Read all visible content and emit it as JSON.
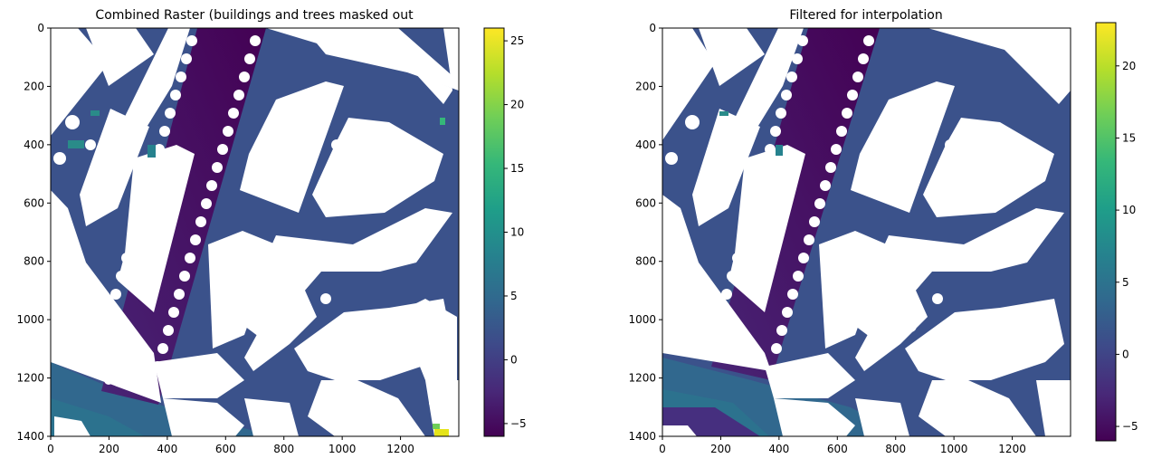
{
  "figure": {
    "background": "#ffffff",
    "colormap": "viridis",
    "colormap_stops": [
      "#440154",
      "#482878",
      "#3e4989",
      "#31688e",
      "#26828e",
      "#1f9e89",
      "#35b779",
      "#6ece58",
      "#b5de2b",
      "#fde725"
    ]
  },
  "chart_data": [
    {
      "type": "heatmap",
      "title": "Combined Raster (buildings and trees masked out",
      "xlabel": "",
      "ylabel": "",
      "xlim": [
        0,
        1400
      ],
      "ylim": [
        1400,
        0
      ],
      "xticks": [
        0,
        200,
        400,
        600,
        800,
        1000,
        1200
      ],
      "yticks": [
        0,
        200,
        400,
        600,
        800,
        1000,
        1200,
        1400
      ],
      "colorbar": {
        "vmin": -6,
        "vmax": 26,
        "ticks": [
          -5,
          0,
          5,
          10,
          15,
          20,
          25
        ]
      },
      "masked_areas": "buildings and trees (white)"
    },
    {
      "type": "heatmap",
      "title": "Filtered for interpolation",
      "xlabel": "",
      "ylabel": "",
      "xlim": [
        0,
        1400
      ],
      "ylim": [
        1400,
        0
      ],
      "xticks": [
        0,
        200,
        400,
        600,
        800,
        1000,
        1200
      ],
      "yticks": [
        0,
        200,
        400,
        600,
        800,
        1000,
        1200,
        1400
      ],
      "colorbar": {
        "vmin": -6,
        "vmax": 23,
        "ticks": [
          -5,
          0,
          5,
          10,
          15,
          20
        ]
      },
      "masked_areas": "buildings and trees (white)"
    }
  ]
}
